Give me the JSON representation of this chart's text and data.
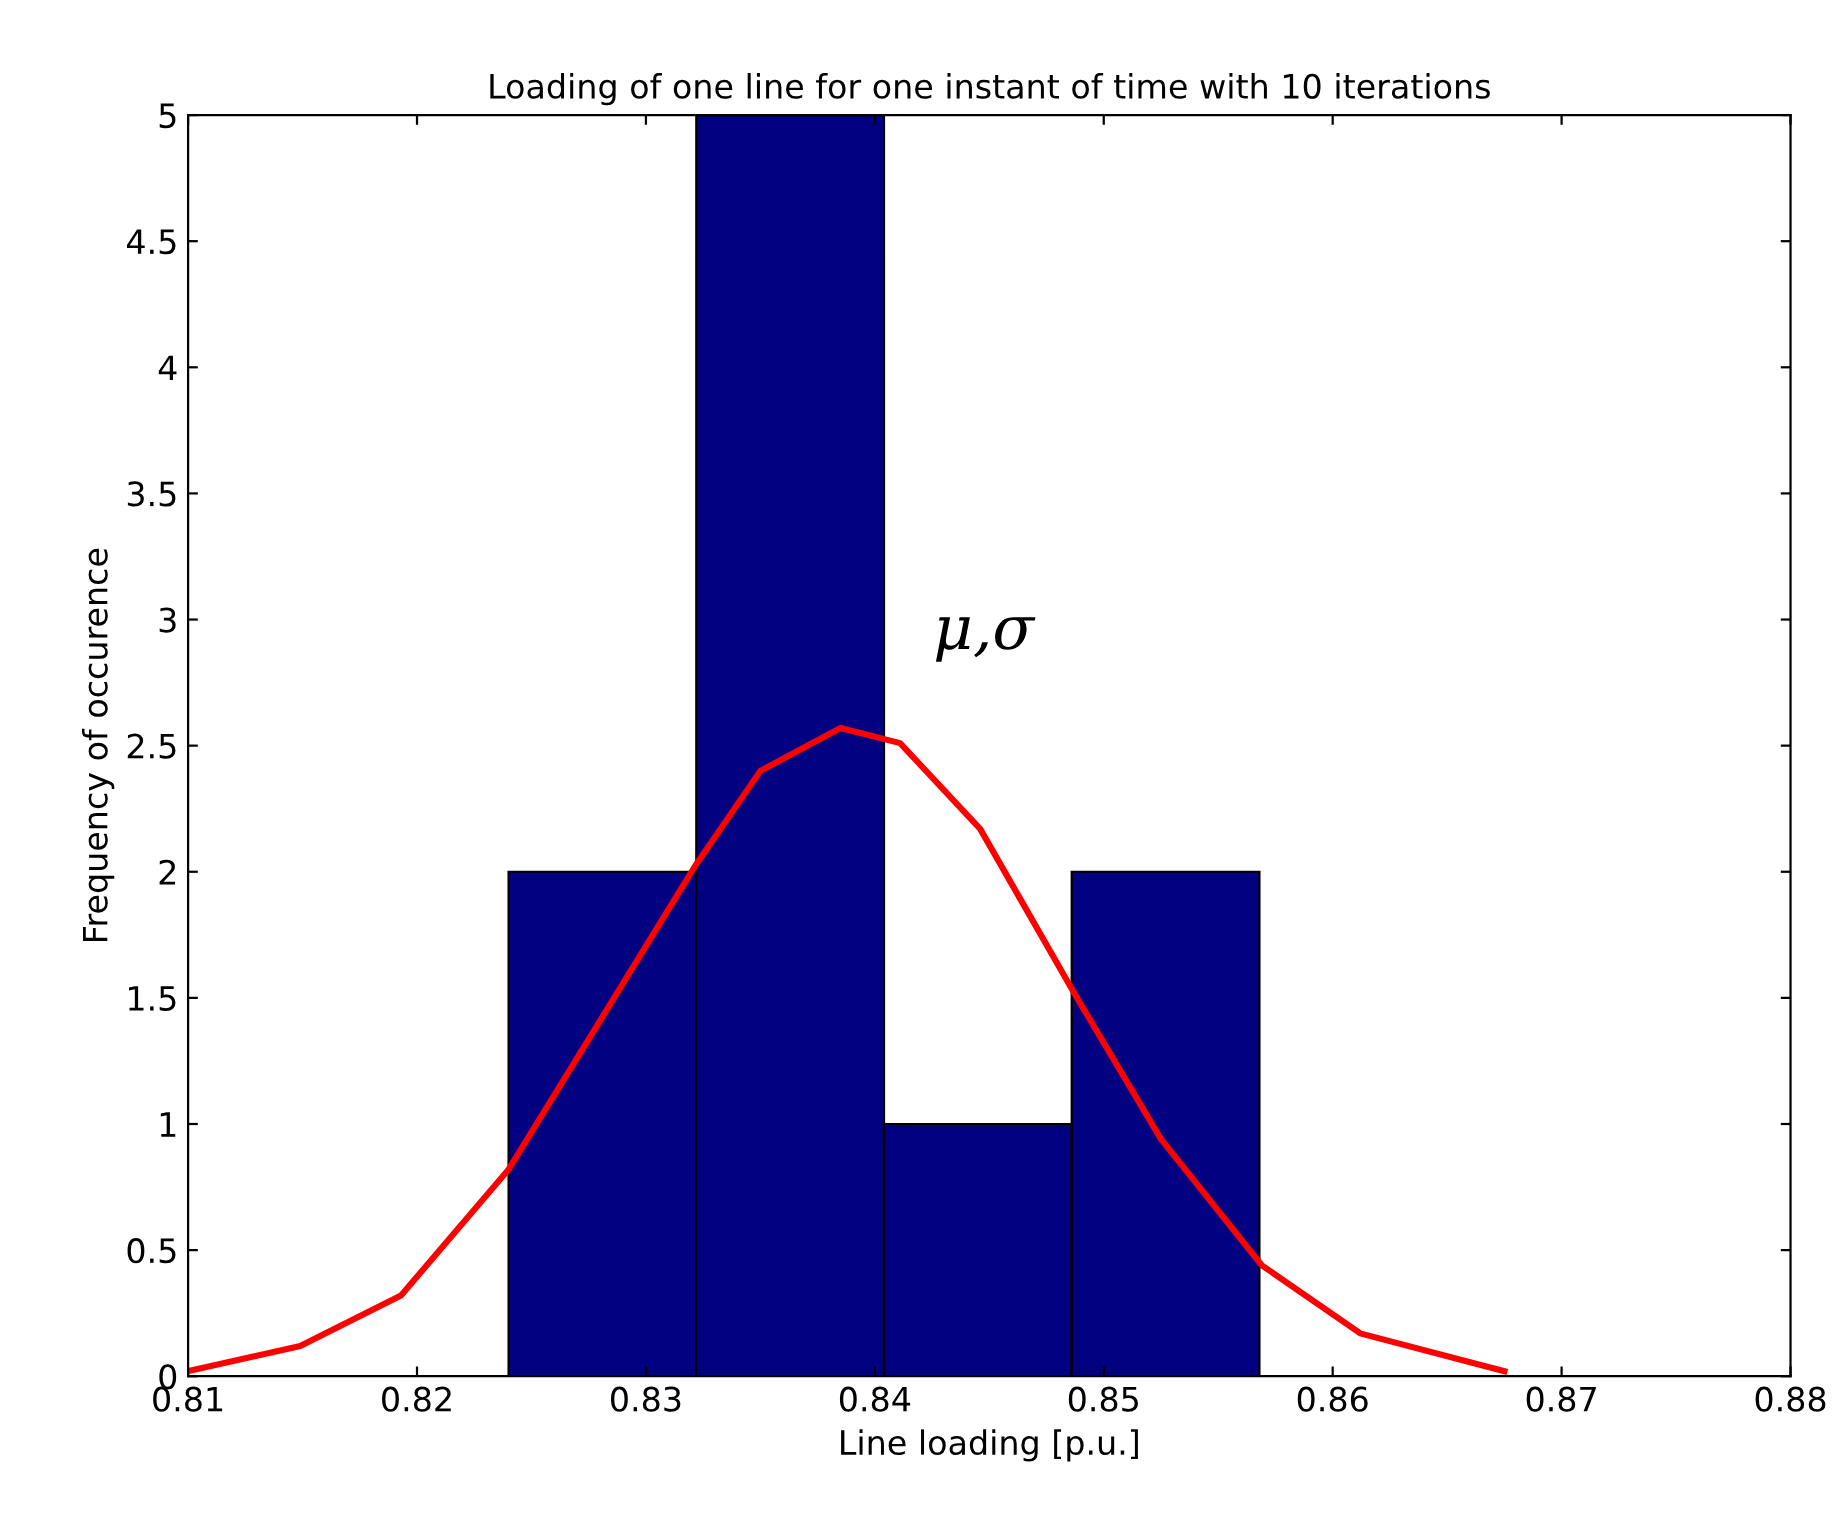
{
  "chart_data": {
    "type": "histogram",
    "title": "Loading of one line for one instant of time with 10 iterations",
    "xlabel": "Line loading [p.u.]",
    "ylabel": "Frequency of occurence",
    "bins": [
      0.824,
      0.8322,
      0.8404,
      0.8486,
      0.8568
    ],
    "values": [
      2,
      5,
      1,
      2
    ],
    "color": "#000080",
    "series": [
      {
        "type": "line",
        "color": "#ff0000",
        "x": [
          0.81,
          0.8149,
          0.8193,
          0.824,
          0.828,
          0.8322,
          0.835,
          0.8385,
          0.8411,
          0.8446,
          0.8487,
          0.8525,
          0.8569,
          0.8612,
          0.8675
        ],
        "values": [
          0.02,
          0.12,
          0.32,
          0.82,
          1.41,
          2.03,
          2.4,
          2.57,
          2.51,
          2.17,
          1.52,
          0.94,
          0.44,
          0.17,
          0.02
        ]
      }
    ],
    "annotations": [
      "μ,σ"
    ],
    "xlim": [
      0.81,
      0.88
    ],
    "xticks": [
      0.81,
      0.82,
      0.83,
      0.84,
      0.85,
      0.86,
      0.87,
      0.88
    ],
    "ylim": [
      0,
      5
    ],
    "yticks": [
      0,
      0.5,
      1,
      1.5,
      2,
      2.5,
      3,
      3.5,
      4,
      4.5,
      5
    ],
    "grid": false
  }
}
